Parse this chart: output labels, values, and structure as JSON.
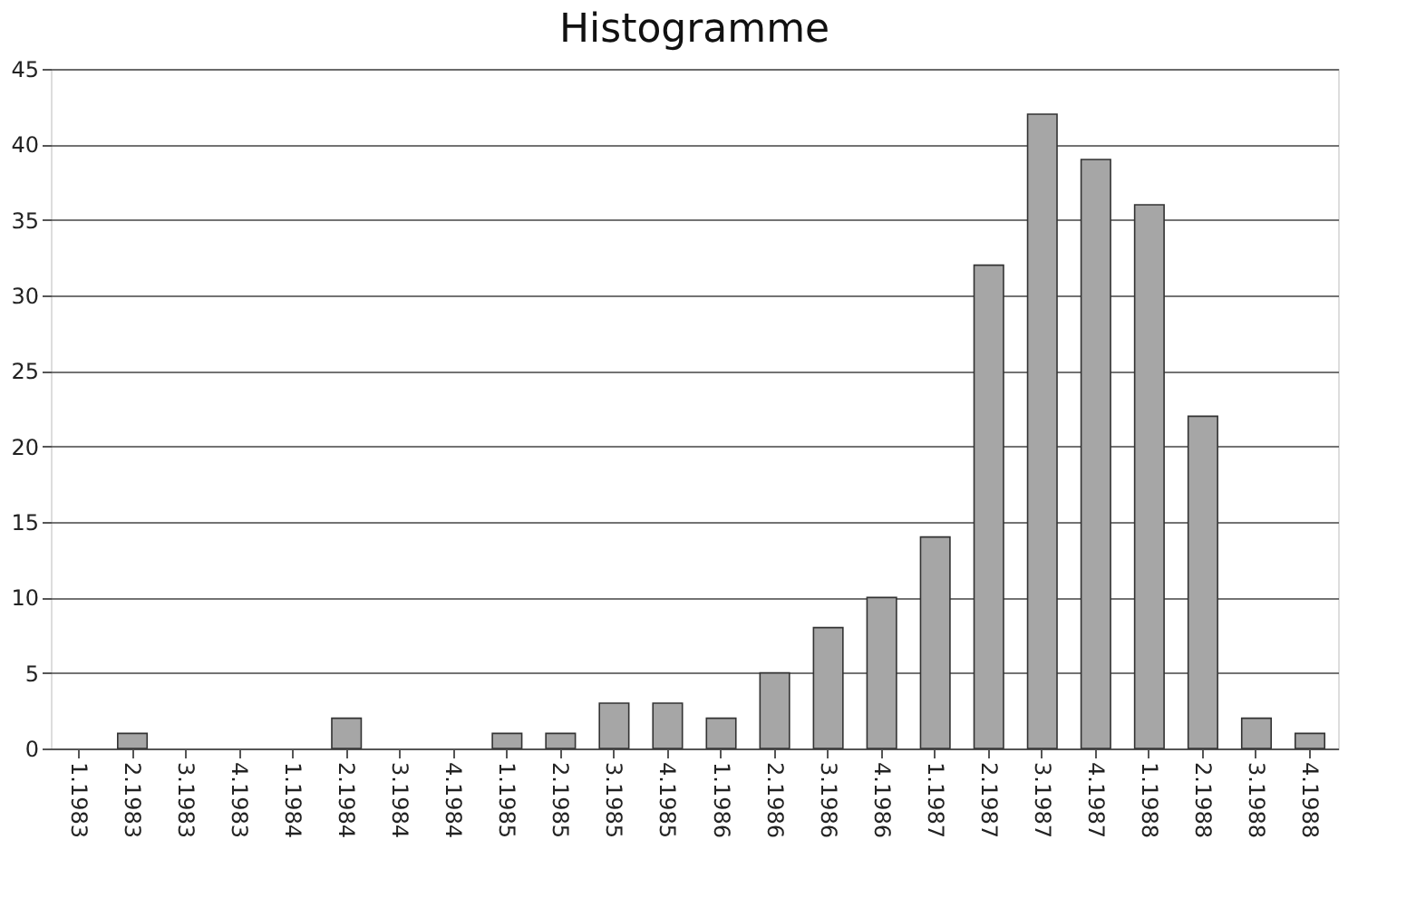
{
  "chart_data": {
    "type": "bar",
    "title": "Histogramme",
    "categories": [
      "1.1983",
      "2.1983",
      "3.1983",
      "4.1983",
      "1.1984",
      "2.1984",
      "3.1984",
      "4.1984",
      "1.1985",
      "2.1985",
      "3.1985",
      "4.1985",
      "1.1986",
      "2.1986",
      "3.1986",
      "4.1986",
      "1.1987",
      "2.1987",
      "3.1987",
      "4.1987",
      "1.1988",
      "2.1988",
      "3.1988",
      "4.1988"
    ],
    "values": [
      0,
      1,
      0,
      0,
      0,
      2,
      0,
      0,
      1,
      1,
      3,
      3,
      2,
      5,
      8,
      10,
      14,
      32,
      42,
      39,
      36,
      22,
      2,
      1
    ],
    "color": "#a6a6a6",
    "ylim": [
      0,
      45
    ],
    "yticks": [
      0,
      5,
      10,
      15,
      20,
      25,
      30,
      35,
      40,
      45
    ],
    "grid": "y"
  }
}
